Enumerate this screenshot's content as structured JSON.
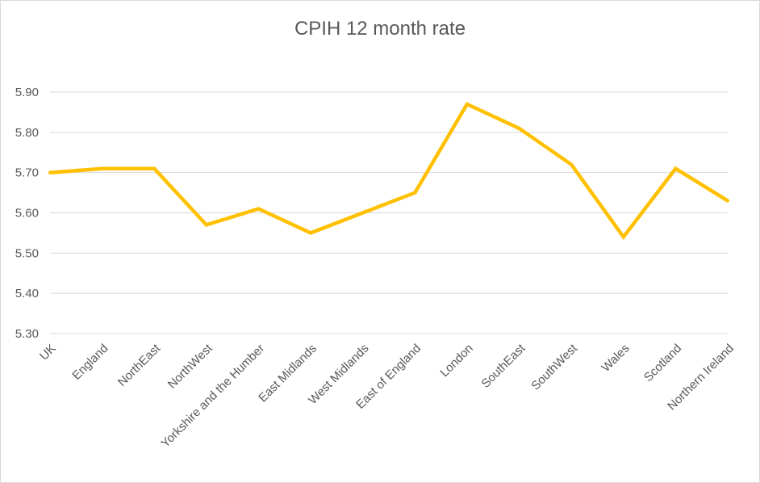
{
  "chart_data": {
    "type": "line",
    "title": "CPIH 12 month rate",
    "xlabel": "",
    "ylabel": "",
    "categories": [
      "UK",
      "England",
      "NorthEast",
      "NorthWest",
      "Yorkshire and the Humber",
      "East Midlands",
      "West Midlands",
      "East of England",
      "London",
      "SouthEast",
      "SouthWest",
      "Wales",
      "Scotland",
      "Northern Ireland"
    ],
    "series": [
      {
        "values": [
          5.7,
          5.71,
          5.71,
          5.57,
          5.61,
          5.55,
          5.6,
          5.65,
          5.87,
          5.81,
          5.72,
          5.54,
          5.71,
          5.63
        ],
        "color": "#ffc000"
      }
    ],
    "ylim": [
      5.3,
      5.9
    ],
    "yticks": [
      "5.30",
      "5.40",
      "5.50",
      "5.60",
      "5.70",
      "5.80",
      "5.90"
    ],
    "grid": true,
    "legend": "none"
  }
}
